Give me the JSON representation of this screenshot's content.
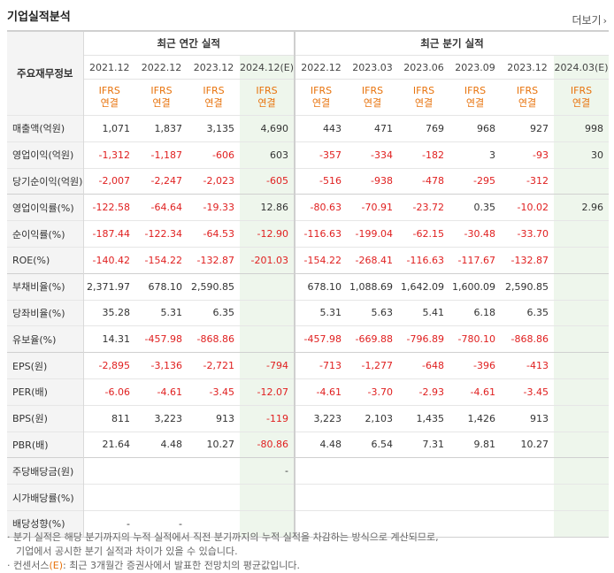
{
  "header": {
    "title": "기업실적분석",
    "more_label": "더보기"
  },
  "table": {
    "label_header": "주요재무정보",
    "annual_group": "최근 연간 실적",
    "quarter_group": "최근 분기 실적",
    "annual_periods": [
      "2021.12",
      "2022.12",
      "2023.12",
      "2024.12(E)"
    ],
    "quarter_periods": [
      "2022.12",
      "2023.03",
      "2023.06",
      "2023.09",
      "2023.12",
      "2024.03(E)"
    ],
    "ifrs_top": "IFRS",
    "ifrs_bottom": "연결",
    "rows": [
      {
        "label": "매출액(억원)",
        "annual": [
          "1,071",
          "1,837",
          "3,135",
          "4,690"
        ],
        "quarter": [
          "443",
          "471",
          "769",
          "968",
          "927",
          "998"
        ]
      },
      {
        "label": "영업이익(억원)",
        "annual": [
          "-1,312",
          "-1,187",
          "-606",
          "603"
        ],
        "quarter": [
          "-357",
          "-334",
          "-182",
          "3",
          "-93",
          "30"
        ]
      },
      {
        "label": "당기순이익(억원)",
        "annual": [
          "-2,007",
          "-2,247",
          "-2,023",
          "-605"
        ],
        "quarter": [
          "-516",
          "-938",
          "-478",
          "-295",
          "-312",
          ""
        ]
      },
      {
        "label": "영업이익률(%)",
        "annual": [
          "-122.58",
          "-64.64",
          "-19.33",
          "12.86"
        ],
        "quarter": [
          "-80.63",
          "-70.91",
          "-23.72",
          "0.35",
          "-10.02",
          "2.96"
        ]
      },
      {
        "label": "순이익률(%)",
        "annual": [
          "-187.44",
          "-122.34",
          "-64.53",
          "-12.90"
        ],
        "quarter": [
          "-116.63",
          "-199.04",
          "-62.15",
          "-30.48",
          "-33.70",
          ""
        ]
      },
      {
        "label": "ROE(%)",
        "annual": [
          "-140.42",
          "-154.22",
          "-132.87",
          "-201.03"
        ],
        "quarter": [
          "-154.22",
          "-268.41",
          "-116.63",
          "-117.67",
          "-132.87",
          ""
        ]
      },
      {
        "label": "부채비율(%)",
        "annual": [
          "2,371.97",
          "678.10",
          "2,590.85",
          ""
        ],
        "quarter": [
          "678.10",
          "1,088.69",
          "1,642.09",
          "1,600.09",
          "2,590.85",
          ""
        ]
      },
      {
        "label": "당좌비율(%)",
        "annual": [
          "35.28",
          "5.31",
          "6.35",
          ""
        ],
        "quarter": [
          "5.31",
          "5.63",
          "5.41",
          "6.18",
          "6.35",
          ""
        ]
      },
      {
        "label": "유보율(%)",
        "annual": [
          "14.31",
          "-457.98",
          "-868.86",
          ""
        ],
        "quarter": [
          "-457.98",
          "-669.88",
          "-796.89",
          "-780.10",
          "-868.86",
          ""
        ]
      },
      {
        "label": "EPS(원)",
        "annual": [
          "-2,895",
          "-3,136",
          "-2,721",
          "-794"
        ],
        "quarter": [
          "-713",
          "-1,277",
          "-648",
          "-396",
          "-413",
          ""
        ]
      },
      {
        "label": "PER(배)",
        "annual": [
          "-6.06",
          "-4.61",
          "-3.45",
          "-12.07"
        ],
        "quarter": [
          "-4.61",
          "-3.70",
          "-2.93",
          "-4.61",
          "-3.45",
          ""
        ]
      },
      {
        "label": "BPS(원)",
        "annual": [
          "811",
          "3,223",
          "913",
          "-119"
        ],
        "quarter": [
          "3,223",
          "2,103",
          "1,435",
          "1,426",
          "913",
          ""
        ]
      },
      {
        "label": "PBR(배)",
        "annual": [
          "21.64",
          "4.48",
          "10.27",
          "-80.86"
        ],
        "quarter": [
          "4.48",
          "6.54",
          "7.31",
          "9.81",
          "10.27",
          ""
        ]
      },
      {
        "label": "주당배당금(원)",
        "annual": [
          "",
          "",
          "",
          "-"
        ],
        "quarter": [
          "",
          "",
          "",
          "",
          "",
          ""
        ]
      },
      {
        "label": "시가배당률(%)",
        "annual": [
          "",
          "",
          "",
          ""
        ],
        "quarter": [
          "",
          "",
          "",
          "",
          "",
          ""
        ]
      },
      {
        "label": "배당성향(%)",
        "annual": [
          "-",
          "-",
          "",
          ""
        ],
        "quarter": [
          "",
          "",
          "",
          "",
          "",
          ""
        ]
      }
    ]
  },
  "notes": {
    "line1": "분기 실적은 해당 분기까지의 누적 실적에서 직전 분기까지의 누적 실적을 차감하는 방식으로 계산되므로,",
    "line2": "기업에서 공시한 분기 실적과 차이가 있을 수 있습니다.",
    "line3_prefix": "컨센서스",
    "line3_e": "(E)",
    "line3_suffix": ": 최근 3개월간 증권사에서 발표한 전망치의 평균값입니다."
  }
}
